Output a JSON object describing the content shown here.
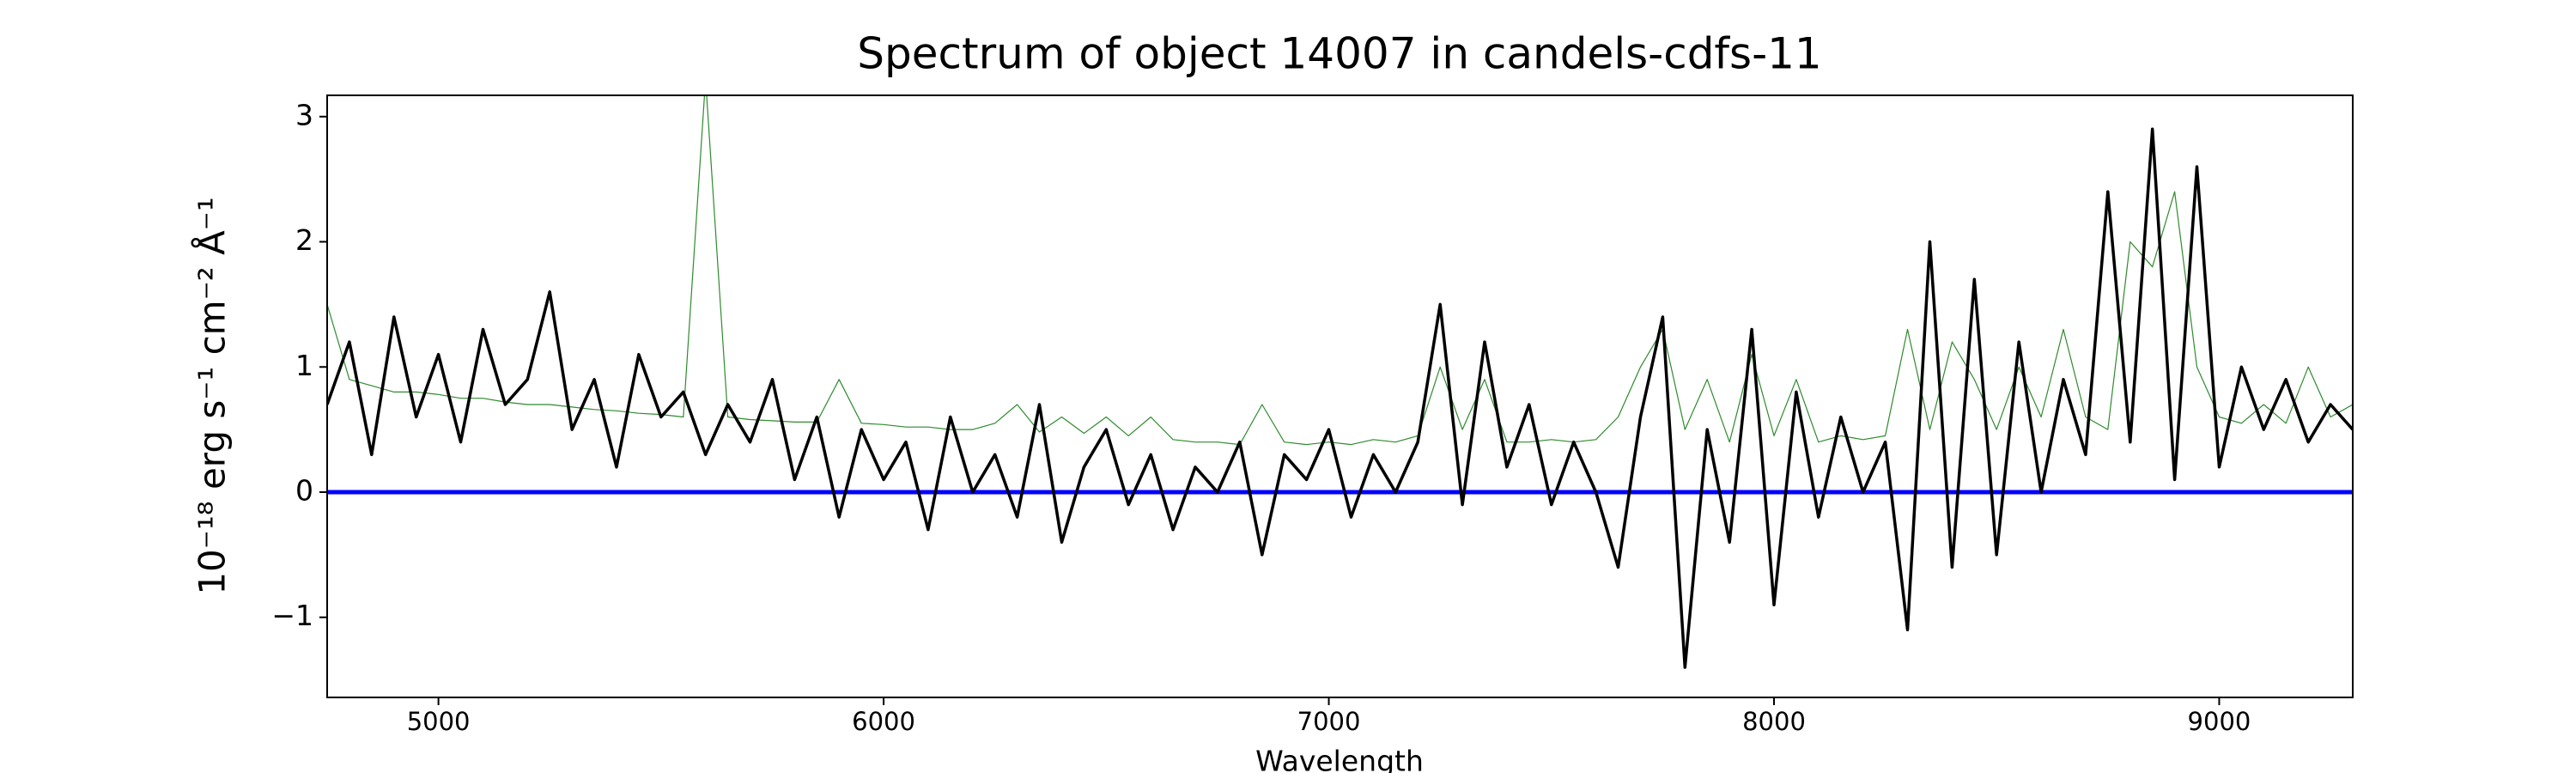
{
  "chart_data": {
    "type": "line",
    "title": "Spectrum of object 14007 in candels-cdfs-11",
    "x_label": "Wavelength",
    "y_label": "10⁻¹⁸ erg s⁻¹ cm⁻² Å⁻¹",
    "x": [
      4750,
      4800,
      4850,
      4900,
      4950,
      5000,
      5050,
      5100,
      5150,
      5200,
      5250,
      5300,
      5350,
      5400,
      5450,
      5500,
      5550,
      5600,
      5650,
      5700,
      5750,
      5800,
      5850,
      5900,
      5950,
      6000,
      6050,
      6100,
      6150,
      6200,
      6250,
      6300,
      6350,
      6400,
      6450,
      6500,
      6550,
      6600,
      6650,
      6700,
      6750,
      6800,
      6850,
      6900,
      6950,
      7000,
      7050,
      7100,
      7150,
      7200,
      7250,
      7300,
      7350,
      7400,
      7450,
      7500,
      7550,
      7600,
      7650,
      7700,
      7750,
      7800,
      7850,
      7900,
      7950,
      8000,
      8050,
      8100,
      8150,
      8200,
      8250,
      8300,
      8350,
      8400,
      8450,
      8500,
      8550,
      8600,
      8650,
      8700,
      8750,
      8800,
      8850,
      8900,
      8950,
      9000,
      9050,
      9100,
      9150,
      9200,
      9250,
      9300
    ],
    "series": [
      {
        "color": "#2e8b2e",
        "width": 1.2,
        "values": [
          1.5,
          0.9,
          0.85,
          0.8,
          0.8,
          0.78,
          0.75,
          0.75,
          0.72,
          0.7,
          0.7,
          0.68,
          0.66,
          0.65,
          0.63,
          0.62,
          0.6,
          3.3,
          0.6,
          0.58,
          0.57,
          0.56,
          0.56,
          0.9,
          0.55,
          0.54,
          0.52,
          0.52,
          0.5,
          0.5,
          0.55,
          0.7,
          0.48,
          0.6,
          0.47,
          0.6,
          0.45,
          0.6,
          0.42,
          0.4,
          0.4,
          0.38,
          0.7,
          0.4,
          0.38,
          0.4,
          0.38,
          0.42,
          0.4,
          0.45,
          1.0,
          0.5,
          0.9,
          0.4,
          0.4,
          0.42,
          0.4,
          0.42,
          0.6,
          1.0,
          1.3,
          0.5,
          0.9,
          0.4,
          1.1,
          0.45,
          0.9,
          0.4,
          0.45,
          0.42,
          0.45,
          1.3,
          0.5,
          1.2,
          0.9,
          0.5,
          1.0,
          0.6,
          1.3,
          0.6,
          0.5,
          2.0,
          1.8,
          2.4,
          1.0,
          0.6,
          0.55,
          0.7,
          0.55,
          1.0,
          0.6,
          0.7
        ]
      },
      {
        "color": "#000000",
        "width": 3.5,
        "values": [
          0.7,
          1.2,
          0.3,
          1.4,
          0.6,
          1.1,
          0.4,
          1.3,
          0.7,
          0.9,
          1.6,
          0.5,
          0.9,
          0.2,
          1.1,
          0.6,
          0.8,
          0.3,
          0.7,
          0.4,
          0.9,
          0.1,
          0.6,
          -0.2,
          0.5,
          0.1,
          0.4,
          -0.3,
          0.6,
          0.0,
          0.3,
          -0.2,
          0.7,
          -0.4,
          0.2,
          0.5,
          -0.1,
          0.3,
          -0.3,
          0.2,
          0.0,
          0.4,
          -0.5,
          0.3,
          0.1,
          0.5,
          -0.2,
          0.3,
          0.0,
          0.4,
          1.5,
          -0.1,
          1.2,
          0.2,
          0.7,
          -0.1,
          0.4,
          0.0,
          -0.6,
          0.6,
          1.4,
          -1.4,
          0.5,
          -0.4,
          1.3,
          -0.9,
          0.8,
          -0.2,
          0.6,
          0.0,
          0.4,
          -1.1,
          2.0,
          -0.6,
          1.7,
          -0.5,
          1.2,
          0.0,
          0.9,
          0.3,
          2.4,
          0.4,
          2.9,
          0.1,
          2.6,
          0.2,
          1.0,
          0.5,
          0.9,
          0.4,
          0.7,
          0.5
        ]
      }
    ],
    "hline": {
      "value": 0,
      "color": "#0000ff"
    },
    "xlim": [
      4750,
      9300
    ],
    "ylim": [
      -1.64,
      3.17
    ],
    "xticks": [
      5000,
      6000,
      7000,
      8000,
      9000
    ],
    "yticks": [
      {
        "value": -1,
        "label": "−1"
      },
      0,
      1,
      2,
      3
    ]
  }
}
